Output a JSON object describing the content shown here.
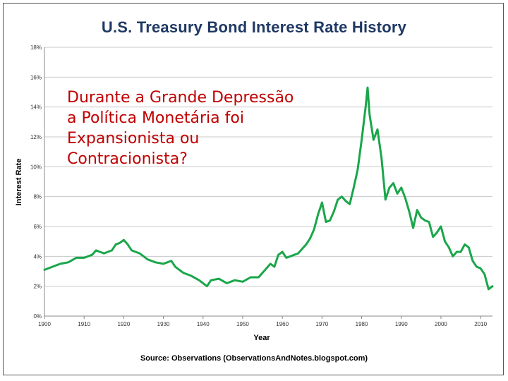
{
  "chart_data": {
    "type": "line",
    "title": "U.S. Treasury Bond Interest Rate History",
    "xlabel": "Year",
    "ylabel": "Interest Rate",
    "xlim": [
      1900,
      2013
    ],
    "ylim": [
      0,
      18
    ],
    "x_ticks": [
      1900,
      1910,
      1920,
      1930,
      1940,
      1950,
      1960,
      1970,
      1980,
      1990,
      2000,
      2010
    ],
    "y_ticks": [
      0,
      2,
      4,
      6,
      8,
      10,
      12,
      14,
      16,
      18
    ],
    "y_tick_labels": [
      "0%",
      "2%",
      "4%",
      "6%",
      "8%",
      "10%",
      "12%",
      "14%",
      "16%",
      "18%"
    ],
    "grid": true,
    "series_color": "#1aa64a",
    "series": [
      {
        "name": "Interest Rate",
        "x": [
          1900,
          1902,
          1904,
          1906,
          1908,
          1910,
          1912,
          1913,
          1915,
          1917,
          1918,
          1919,
          1920,
          1921,
          1922,
          1924,
          1926,
          1928,
          1930,
          1932,
          1933,
          1935,
          1937,
          1939,
          1940,
          1941,
          1942,
          1944,
          1946,
          1948,
          1950,
          1952,
          1954,
          1956,
          1957,
          1958,
          1959,
          1960,
          1961,
          1962,
          1964,
          1966,
          1967,
          1968,
          1969,
          1970,
          1971,
          1972,
          1973,
          1974,
          1975,
          1976,
          1977,
          1978,
          1979,
          1980,
          1981,
          1981.5,
          1982,
          1983,
          1984,
          1985,
          1986,
          1987,
          1988,
          1989,
          1990,
          1991,
          1992,
          1993,
          1994,
          1995,
          1996,
          1997,
          1998,
          1999,
          2000,
          2001,
          2002,
          2003,
          2004,
          2005,
          2006,
          2007,
          2008,
          2009,
          2010,
          2011,
          2012,
          2013
        ],
        "values": [
          3.1,
          3.3,
          3.5,
          3.6,
          3.9,
          3.9,
          4.1,
          4.4,
          4.2,
          4.4,
          4.8,
          4.9,
          5.1,
          4.8,
          4.4,
          4.2,
          3.8,
          3.6,
          3.5,
          3.7,
          3.3,
          2.9,
          2.7,
          2.4,
          2.2,
          2.0,
          2.4,
          2.5,
          2.2,
          2.4,
          2.3,
          2.6,
          2.6,
          3.2,
          3.5,
          3.3,
          4.1,
          4.3,
          3.9,
          4.0,
          4.2,
          4.8,
          5.2,
          5.8,
          6.8,
          7.6,
          6.3,
          6.4,
          7.0,
          7.8,
          8.0,
          7.7,
          7.5,
          8.6,
          9.8,
          11.8,
          14.0,
          15.3,
          13.5,
          11.8,
          12.5,
          10.6,
          7.8,
          8.6,
          8.9,
          8.2,
          8.6,
          7.9,
          7.0,
          5.9,
          7.1,
          6.6,
          6.4,
          6.3,
          5.3,
          5.6,
          6.0,
          5.0,
          4.6,
          4.0,
          4.3,
          4.3,
          4.8,
          4.6,
          3.7,
          3.3,
          3.2,
          2.8,
          1.8,
          2.0
        ]
      }
    ],
    "source": "Source: Observations   (ObservationsAndNotes.blogspot.com)"
  },
  "overlay": {
    "lines": [
      "Durante a Grande Depressão",
      "a Política Monetária foi",
      "Expansionista ou",
      "Contracionista?"
    ]
  }
}
